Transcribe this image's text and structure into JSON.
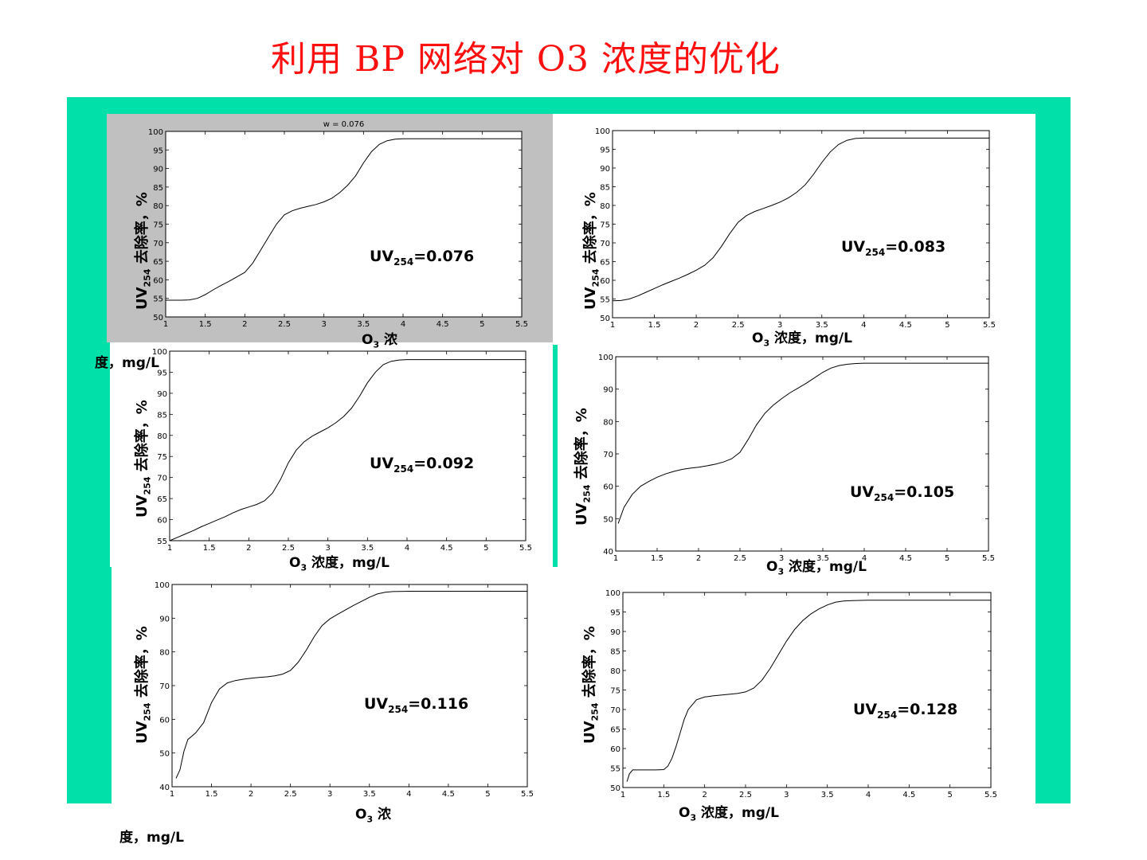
{
  "slide": {
    "title": "利用 BP 网络对 O3 浓度的优化",
    "colors": {
      "title": "#ff1010",
      "frame": "#00e0a8",
      "gray_panel": "#c0c0c0"
    }
  },
  "axis_text": {
    "ylabel_main": "UV",
    "ylabel_sub": "254",
    "ylabel_rest": " 去除率，%",
    "xlabel_main": "O",
    "xlabel_sub": "3",
    "xlabel_rest": "  浓度，mg/L",
    "xlabel_split_a": "  浓",
    "xlabel_split_b": "度，mg/L"
  },
  "chart_data": [
    {
      "type": "line",
      "title": "w = 0.076",
      "annotation": {
        "main": "UV",
        "sub": "254",
        "rest": "=0.076"
      },
      "xlim": [
        1,
        5.5
      ],
      "ylim": [
        50,
        100
      ],
      "xticks": [
        1,
        1.5,
        2,
        2.5,
        3,
        3.5,
        4,
        4.5,
        5,
        5.5
      ],
      "yticks": [
        50,
        55,
        60,
        65,
        70,
        75,
        80,
        85,
        90,
        95,
        100
      ],
      "series": [
        {
          "x": [
            1.0,
            1.1,
            1.2,
            1.3,
            1.4,
            1.5,
            1.6,
            1.7,
            1.8,
            1.9,
            2.0,
            2.1,
            2.2,
            2.3,
            2.4,
            2.5,
            2.6,
            2.7,
            2.8,
            2.9,
            3.0,
            3.1,
            3.2,
            3.3,
            3.4,
            3.5,
            3.6,
            3.7,
            3.8,
            3.9,
            4.0,
            4.5,
            5.0,
            5.5
          ],
          "y": [
            54.5,
            54.5,
            54.5,
            54.6,
            55.0,
            56.0,
            57.3,
            58.5,
            59.6,
            60.8,
            62.0,
            64.5,
            68.0,
            71.5,
            75.0,
            77.5,
            78.6,
            79.3,
            79.8,
            80.3,
            81.0,
            82.0,
            83.5,
            85.5,
            88.0,
            91.5,
            94.5,
            96.5,
            97.5,
            97.9,
            98.0,
            98.0,
            98.0,
            98.0
          ]
        }
      ]
    },
    {
      "type": "line",
      "annotation": {
        "main": "UV",
        "sub": "254",
        "rest": "=0.083"
      },
      "xlim": [
        1,
        5.5
      ],
      "ylim": [
        50,
        100
      ],
      "xticks": [
        1,
        1.5,
        2,
        2.5,
        3,
        3.5,
        4,
        4.5,
        5,
        5.5
      ],
      "yticks": [
        50,
        55,
        60,
        65,
        70,
        75,
        80,
        85,
        90,
        95,
        100
      ],
      "series": [
        {
          "x": [
            1.0,
            1.1,
            1.2,
            1.3,
            1.4,
            1.5,
            1.6,
            1.7,
            1.8,
            1.9,
            2.0,
            2.1,
            2.2,
            2.3,
            2.4,
            2.5,
            2.6,
            2.7,
            2.8,
            2.9,
            3.0,
            3.1,
            3.2,
            3.3,
            3.4,
            3.5,
            3.6,
            3.7,
            3.8,
            3.9,
            4.0,
            4.5,
            5.0,
            5.5
          ],
          "y": [
            54.5,
            54.6,
            55.0,
            55.8,
            56.8,
            57.8,
            58.8,
            59.7,
            60.6,
            61.6,
            62.7,
            64.0,
            66.0,
            69.0,
            72.5,
            75.5,
            77.3,
            78.4,
            79.2,
            80.0,
            80.9,
            82.0,
            83.5,
            85.5,
            88.3,
            91.5,
            94.3,
            96.3,
            97.4,
            97.9,
            98.0,
            98.0,
            98.0,
            98.0
          ]
        }
      ]
    },
    {
      "type": "line",
      "annotation": {
        "main": "UV",
        "sub": "254",
        "rest": "=0.092"
      },
      "xlim": [
        1,
        5.5
      ],
      "ylim": [
        55,
        100
      ],
      "xticks": [
        1,
        1.5,
        2,
        2.5,
        3,
        3.5,
        4,
        4.5,
        5,
        5.5
      ],
      "yticks": [
        55,
        60,
        65,
        70,
        75,
        80,
        85,
        90,
        95,
        100
      ],
      "series": [
        {
          "x": [
            1.0,
            1.1,
            1.2,
            1.3,
            1.4,
            1.5,
            1.6,
            1.7,
            1.8,
            1.9,
            2.0,
            2.1,
            2.2,
            2.3,
            2.4,
            2.5,
            2.6,
            2.7,
            2.8,
            2.9,
            3.0,
            3.1,
            3.2,
            3.3,
            3.4,
            3.5,
            3.6,
            3.7,
            3.8,
            3.9,
            4.0,
            4.5,
            5.0,
            5.5
          ],
          "y": [
            55.0,
            55.8,
            56.6,
            57.4,
            58.3,
            59.1,
            59.9,
            60.7,
            61.6,
            62.4,
            63.0,
            63.6,
            64.5,
            66.3,
            69.5,
            73.5,
            76.5,
            78.5,
            79.8,
            80.8,
            81.8,
            83.0,
            84.5,
            86.5,
            89.3,
            92.5,
            95.0,
            96.8,
            97.6,
            97.9,
            98.0,
            98.0,
            98.0,
            98.0
          ]
        }
      ]
    },
    {
      "type": "line",
      "annotation": {
        "main": "UV",
        "sub": "254",
        "rest": "=0.105"
      },
      "xlim": [
        1,
        5.5
      ],
      "ylim": [
        40,
        100
      ],
      "xticks": [
        1,
        1.5,
        2,
        2.5,
        3,
        3.5,
        4,
        4.5,
        5,
        5.5
      ],
      "yticks": [
        40,
        50,
        60,
        70,
        80,
        90,
        100
      ],
      "series": [
        {
          "x": [
            1.03,
            1.1,
            1.2,
            1.3,
            1.4,
            1.5,
            1.6,
            1.7,
            1.8,
            1.9,
            2.0,
            2.1,
            2.2,
            2.3,
            2.4,
            2.5,
            2.6,
            2.7,
            2.8,
            2.9,
            3.0,
            3.1,
            3.2,
            3.3,
            3.4,
            3.5,
            3.6,
            3.7,
            3.8,
            3.9,
            4.0,
            4.5,
            5.0,
            5.5
          ],
          "y": [
            48.5,
            53.5,
            57.5,
            60.0,
            61.5,
            62.8,
            63.8,
            64.6,
            65.2,
            65.6,
            65.9,
            66.3,
            66.8,
            67.5,
            68.5,
            70.5,
            74.5,
            79.0,
            82.5,
            85.0,
            87.0,
            88.8,
            90.3,
            91.8,
            93.5,
            95.2,
            96.5,
            97.3,
            97.7,
            97.9,
            98.0,
            98.0,
            98.0,
            98.0
          ]
        }
      ]
    },
    {
      "type": "line",
      "annotation": {
        "main": "UV",
        "sub": "254",
        "rest": "=0.116"
      },
      "xlim": [
        1,
        5.5
      ],
      "ylim": [
        40,
        100
      ],
      "xticks": [
        1,
        1.5,
        2,
        2.5,
        3,
        3.5,
        4,
        4.5,
        5,
        5.5
      ],
      "yticks": [
        40,
        50,
        60,
        70,
        80,
        90,
        100
      ],
      "series": [
        {
          "x": [
            1.05,
            1.1,
            1.15,
            1.2,
            1.25,
            1.3,
            1.4,
            1.5,
            1.6,
            1.7,
            1.8,
            1.9,
            2.0,
            2.1,
            2.2,
            2.3,
            2.4,
            2.5,
            2.6,
            2.7,
            2.8,
            2.9,
            3.0,
            3.1,
            3.2,
            3.3,
            3.4,
            3.5,
            3.6,
            3.7,
            3.8,
            4.0,
            4.5,
            5.0,
            5.5
          ],
          "y": [
            42.5,
            45.0,
            50.5,
            54.0,
            55.0,
            56.0,
            59.0,
            65.0,
            69.0,
            70.8,
            71.5,
            71.9,
            72.2,
            72.4,
            72.6,
            72.9,
            73.4,
            74.5,
            77.0,
            80.5,
            84.5,
            87.8,
            89.8,
            91.2,
            92.5,
            93.8,
            95.0,
            96.2,
            97.2,
            97.7,
            97.9,
            98.0,
            98.0,
            98.0,
            98.0
          ]
        }
      ]
    },
    {
      "type": "line",
      "annotation": {
        "main": "UV",
        "sub": "254",
        "rest": "=0.128"
      },
      "xlim": [
        1,
        5.5
      ],
      "ylim": [
        50,
        100
      ],
      "xticks": [
        1,
        1.5,
        2,
        2.5,
        3,
        3.5,
        4,
        4.5,
        5,
        5.5
      ],
      "yticks": [
        50,
        55,
        60,
        65,
        70,
        75,
        80,
        85,
        90,
        95,
        100
      ],
      "series": [
        {
          "x": [
            1.05,
            1.08,
            1.12,
            1.2,
            1.3,
            1.4,
            1.5,
            1.55,
            1.6,
            1.65,
            1.7,
            1.75,
            1.8,
            1.9,
            2.0,
            2.1,
            2.2,
            2.3,
            2.4,
            2.5,
            2.6,
            2.7,
            2.8,
            2.9,
            3.0,
            3.1,
            3.2,
            3.3,
            3.4,
            3.5,
            3.6,
            3.7,
            3.8,
            4.0,
            4.5,
            5.0,
            5.5
          ],
          "y": [
            51.5,
            53.5,
            54.5,
            54.5,
            54.5,
            54.5,
            54.6,
            55.5,
            57.5,
            60.5,
            64.0,
            67.5,
            70.0,
            72.5,
            73.2,
            73.5,
            73.7,
            73.9,
            74.1,
            74.5,
            75.5,
            77.5,
            80.5,
            84.0,
            87.5,
            90.5,
            92.8,
            94.5,
            95.8,
            96.8,
            97.5,
            97.8,
            97.9,
            98.0,
            98.0,
            98.0,
            98.0
          ]
        }
      ]
    }
  ]
}
